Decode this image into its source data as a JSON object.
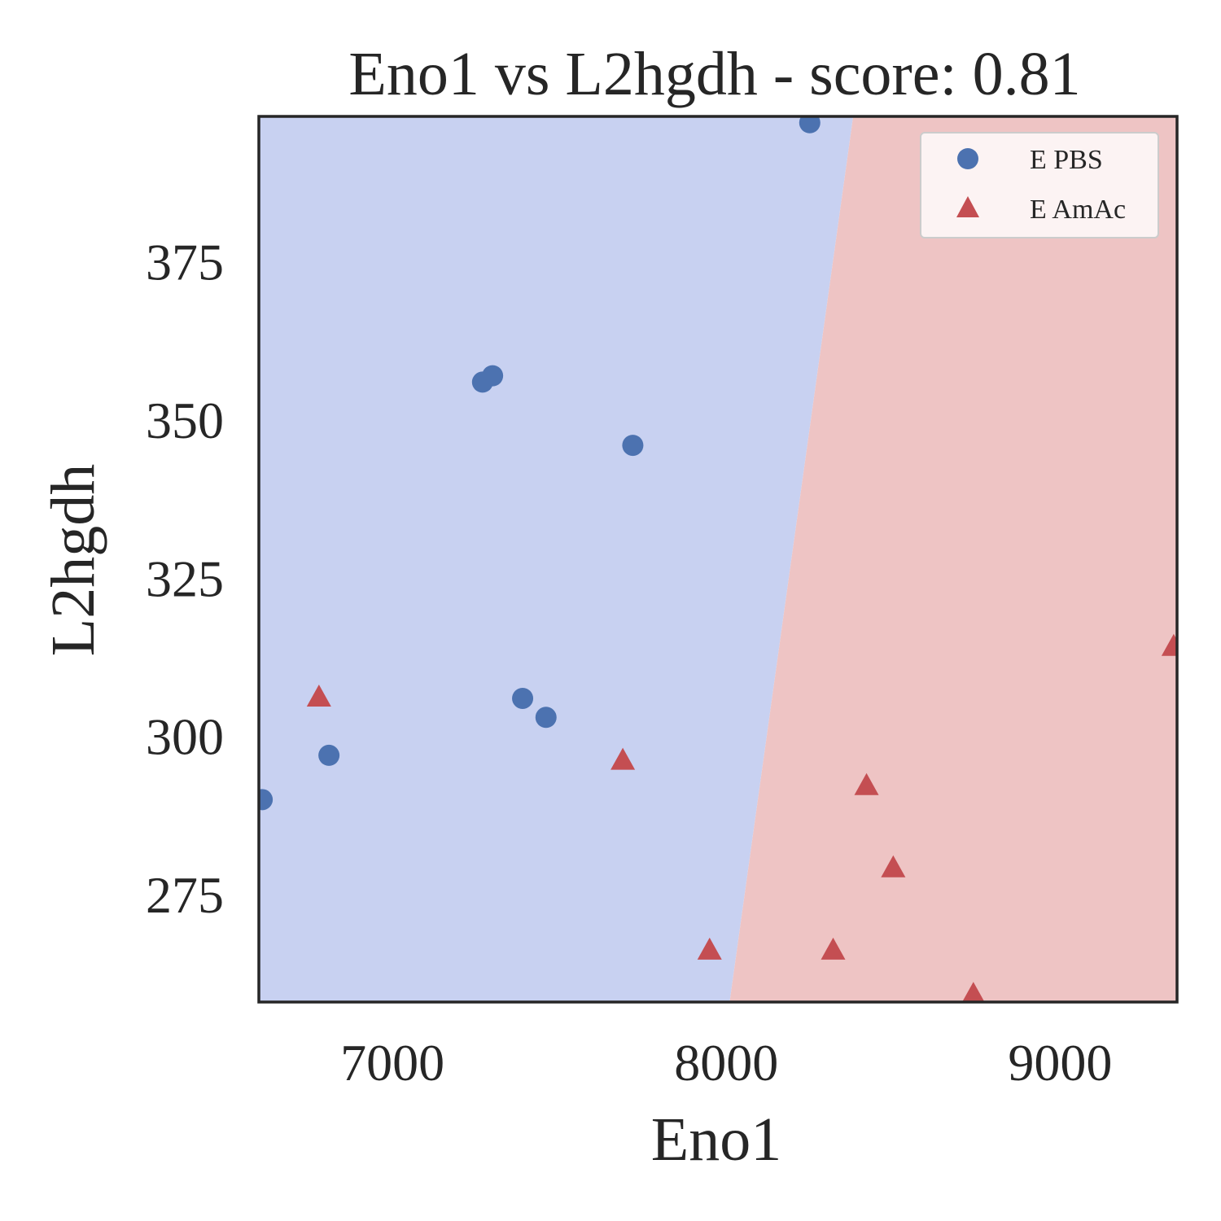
{
  "chart_data": {
    "type": "scatter",
    "title": "Eno1 vs L2hgdh - score: 0.81",
    "xlabel": "Eno1",
    "ylabel": "L2hgdh",
    "xlim": [
      6600,
      9350
    ],
    "ylim": [
      258,
      398
    ],
    "xticks": [
      7000,
      8000,
      9000
    ],
    "yticks": [
      275,
      300,
      325,
      350,
      375
    ],
    "grid": false,
    "legend_position": "top-right",
    "decision_boundary": [
      [
        8010,
        258
      ],
      [
        8380,
        398
      ]
    ],
    "regions": [
      {
        "name": "E PBS",
        "color": "#c8d1f1"
      },
      {
        "name": "E AmAc",
        "color": "#eec4c4"
      }
    ],
    "series": [
      {
        "name": "E PBS",
        "marker": "circle",
        "color": "#4c72b0",
        "points": [
          [
            6610,
            290
          ],
          [
            6810,
            297
          ],
          [
            7270,
            356
          ],
          [
            7300,
            357
          ],
          [
            7390,
            306
          ],
          [
            7460,
            303
          ],
          [
            7720,
            346
          ],
          [
            8250,
            397
          ]
        ]
      },
      {
        "name": "E AmAc",
        "marker": "triangle",
        "color": "#c44e52",
        "points": [
          [
            6780,
            306
          ],
          [
            7690,
            296
          ],
          [
            7950,
            266
          ],
          [
            8320,
            266
          ],
          [
            8420,
            292
          ],
          [
            8500,
            279
          ],
          [
            8740,
            259
          ],
          [
            9340,
            314
          ]
        ]
      }
    ]
  }
}
